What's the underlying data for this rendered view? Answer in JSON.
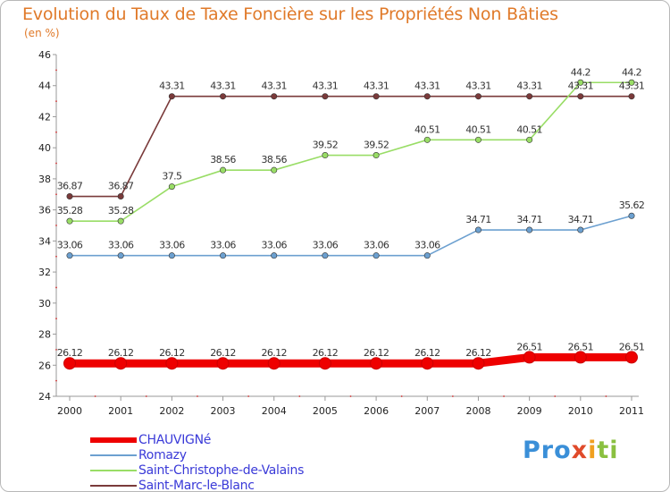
{
  "chart_data": {
    "type": "line",
    "title": "Evolution du Taux de Taxe Foncière sur les Propriétés Non Bâties",
    "ylabel": "(en %)",
    "xlabel": "",
    "ylim": [
      24,
      46
    ],
    "yticks": [
      24,
      26,
      28,
      30,
      32,
      34,
      36,
      38,
      40,
      42,
      44,
      46
    ],
    "categories": [
      "2000",
      "2001",
      "2002",
      "2003",
      "2004",
      "2005",
      "2006",
      "2007",
      "2008",
      "2009",
      "2010",
      "2011"
    ],
    "legend_position": "bottom-left",
    "series": [
      {
        "name": "CHAUVIGNé",
        "color": "#ee0000",
        "thick": true,
        "values": [
          26.12,
          26.12,
          26.12,
          26.12,
          26.12,
          26.12,
          26.12,
          26.12,
          26.12,
          26.51,
          26.51,
          26.51
        ],
        "labels": [
          "26.12",
          "26.12",
          "26.12",
          "26.12",
          "26.12",
          "26.12",
          "26.12",
          "26.12",
          "26.12",
          "26.51",
          "26.51",
          "26.51"
        ]
      },
      {
        "name": "Romazy",
        "color": "#6ca0d0",
        "thick": false,
        "values": [
          33.06,
          33.06,
          33.06,
          33.06,
          33.06,
          33.06,
          33.06,
          33.06,
          34.71,
          34.71,
          34.71,
          35.62
        ],
        "labels": [
          "33.06",
          "33.06",
          "33.06",
          "33.06",
          "33.06",
          "33.06",
          "33.06",
          "33.06",
          "34.71",
          "34.71",
          "34.71",
          "35.62"
        ]
      },
      {
        "name": "Saint-Christophe-de-Valains",
        "color": "#99dd66",
        "thick": false,
        "values": [
          35.28,
          35.28,
          37.5,
          38.56,
          38.56,
          39.52,
          39.52,
          40.51,
          40.51,
          40.51,
          44.2,
          44.2
        ],
        "labels": [
          "35.28",
          "35.28",
          "37.5",
          "38.56",
          "38.56",
          "39.52",
          "39.52",
          "40.51",
          "40.51",
          "40.51",
          "44.2",
          "44.2"
        ]
      },
      {
        "name": "Saint-Marc-le-Blanc",
        "color": "#7a3a3a",
        "thick": false,
        "values": [
          36.87,
          36.87,
          43.31,
          43.31,
          43.31,
          43.31,
          43.31,
          43.31,
          43.31,
          43.31,
          43.31,
          43.31
        ],
        "labels": [
          "36.87",
          "36.87",
          "43.31",
          "43.31",
          "43.31",
          "43.31",
          "43.31",
          "43.31",
          "43.31",
          "43.31",
          "43.31",
          "43.31"
        ]
      }
    ]
  },
  "logo": {
    "part1": "Pro",
    "part2": "x",
    "part3": "i",
    "part4": "ti"
  }
}
